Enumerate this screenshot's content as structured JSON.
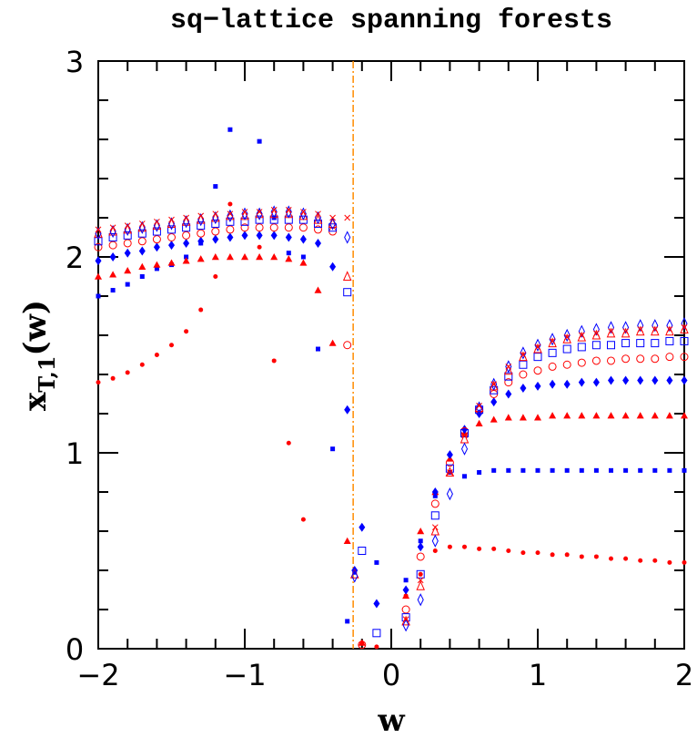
{
  "chart_data": {
    "type": "scatter",
    "title": "sq−lattice spanning forests",
    "xlabel": "w",
    "ylabel": {
      "base": "x",
      "sub": "T,1",
      "tail": "(w)"
    },
    "xlim": [
      -2,
      2
    ],
    "ylim": [
      0,
      3
    ],
    "xticks": [
      {
        "value": -2,
        "label": "−2"
      },
      {
        "value": -1,
        "label": "−1"
      },
      0,
      1,
      2
    ],
    "yticks": [
      0,
      1,
      2,
      3
    ],
    "xminorticks": [
      -1.8,
      -1.6,
      -1.4,
      -1.2,
      -0.8,
      -0.6,
      -0.4,
      -0.2,
      0.2,
      0.4,
      0.6,
      0.8,
      1.2,
      1.4,
      1.6,
      1.8
    ],
    "yminorticks": [
      0.2,
      0.4,
      0.6,
      0.8,
      1.2,
      1.4,
      1.6,
      1.8,
      2.2,
      2.4,
      2.6,
      2.8
    ],
    "vline": {
      "value": -0.26,
      "color": "#ff8c00"
    },
    "x": [
      -2,
      -1.9,
      -1.8,
      -1.7,
      -1.6,
      -1.5,
      -1.4,
      -1.3,
      -1.2,
      -1.1,
      -1.0,
      -0.9,
      -0.8,
      -0.7,
      -0.6,
      -0.5,
      -0.4,
      -0.3,
      -0.25,
      -0.2,
      -0.1,
      0,
      0.1,
      0.2,
      0.3,
      0.4,
      0.5,
      0.6,
      0.7,
      0.8,
      0.9,
      1.0,
      1.1,
      1.2,
      1.3,
      1.4,
      1.5,
      1.6,
      1.7,
      1.8,
      1.9,
      2.0
    ],
    "series": [
      {
        "color": "#ff0000",
        "marker": "dot",
        "values": [
          1.36,
          1.38,
          1.41,
          1.45,
          1.5,
          1.55,
          1.62,
          1.73,
          1.9,
          2.27,
          null,
          2.05,
          1.47,
          1.05,
          0.66,
          null,
          null,
          null,
          null,
          0.03,
          0.01,
          null,
          0.27,
          0.38,
          0.5,
          0.52,
          0.52,
          0.51,
          0.51,
          0.5,
          0.49,
          0.49,
          0.48,
          0.48,
          0.47,
          0.47,
          0.46,
          0.46,
          0.45,
          0.45,
          0.44,
          0.44
        ]
      },
      {
        "color": "#0000ff",
        "marker": "small-square",
        "values": [
          1.8,
          1.83,
          1.86,
          1.9,
          1.94,
          1.96,
          2.0,
          2.07,
          2.36,
          2.65,
          null,
          2.59,
          2.2,
          2.02,
          2.0,
          1.53,
          1.02,
          0.14,
          0.39,
          null,
          0.44,
          null,
          0.35,
          0.55,
          0.78,
          0.9,
          0.88,
          0.9,
          0.91,
          0.91,
          0.91,
          0.91,
          0.91,
          0.91,
          0.91,
          0.91,
          0.91,
          0.91,
          0.91,
          0.91,
          0.91,
          0.91
        ]
      },
      {
        "color": "#ff0000",
        "marker": "triangle",
        "values": [
          1.9,
          1.91,
          1.93,
          1.95,
          1.96,
          1.97,
          1.98,
          1.99,
          2.0,
          2.0,
          2.0,
          2.0,
          2.0,
          1.99,
          1.97,
          1.83,
          1.56,
          0.55,
          null,
          0.03,
          null,
          null,
          0.27,
          0.6,
          0.8,
          0.97,
          1.1,
          1.15,
          1.17,
          1.18,
          1.18,
          1.18,
          1.19,
          1.19,
          1.19,
          1.19,
          1.19,
          1.19,
          1.19,
          1.19,
          1.19,
          1.19
        ]
      },
      {
        "color": "#0000ff",
        "marker": "diamond",
        "values": [
          1.98,
          2.0,
          2.02,
          2.03,
          2.05,
          2.06,
          2.07,
          2.08,
          2.09,
          2.1,
          2.11,
          2.11,
          2.11,
          2.1,
          2.09,
          2.07,
          1.95,
          1.22,
          0.4,
          0.62,
          0.23,
          null,
          0.3,
          0.52,
          0.8,
          0.99,
          1.12,
          1.2,
          1.26,
          1.3,
          1.33,
          1.34,
          1.35,
          1.35,
          1.36,
          1.36,
          1.37,
          1.37,
          1.37,
          1.37,
          1.37,
          1.37
        ]
      },
      {
        "color": "#ff0000",
        "marker": "open-circle",
        "values": [
          2.05,
          2.06,
          2.07,
          2.08,
          2.09,
          2.1,
          2.11,
          2.12,
          2.13,
          2.14,
          2.15,
          2.15,
          2.15,
          2.15,
          2.15,
          2.14,
          2.13,
          1.55,
          null,
          0.02,
          null,
          null,
          0.2,
          0.47,
          0.74,
          0.95,
          1.11,
          1.22,
          1.3,
          1.36,
          1.4,
          1.42,
          1.44,
          1.45,
          1.46,
          1.47,
          1.47,
          1.48,
          1.48,
          1.48,
          1.49,
          1.49
        ]
      },
      {
        "color": "#0000ff",
        "marker": "open-square",
        "values": [
          2.08,
          2.1,
          2.11,
          2.12,
          2.13,
          2.14,
          2.15,
          2.16,
          2.17,
          2.18,
          2.18,
          2.19,
          2.19,
          2.19,
          2.19,
          2.17,
          2.15,
          1.82,
          null,
          0.5,
          0.08,
          null,
          0.16,
          0.38,
          0.68,
          0.92,
          1.1,
          1.22,
          1.32,
          1.39,
          1.45,
          1.49,
          1.51,
          1.53,
          1.54,
          1.55,
          1.55,
          1.56,
          1.56,
          1.56,
          1.57,
          1.57
        ]
      },
      {
        "color": "#ff0000",
        "marker": "open-triangle",
        "values": [
          2.12,
          2.13,
          2.14,
          2.15,
          2.16,
          2.17,
          2.18,
          2.19,
          2.2,
          2.21,
          2.21,
          2.22,
          2.22,
          2.22,
          2.21,
          2.19,
          2.17,
          1.9,
          0.38,
          null,
          null,
          null,
          0.14,
          0.32,
          0.6,
          0.9,
          1.07,
          1.23,
          1.34,
          1.42,
          1.49,
          1.53,
          1.56,
          1.58,
          1.59,
          1.6,
          1.61,
          1.61,
          1.62,
          1.62,
          1.62,
          1.63
        ]
      },
      {
        "color": "#0000ff",
        "marker": "open-diamond",
        "values": [
          2.12,
          2.13,
          2.14,
          2.15,
          2.16,
          2.17,
          2.18,
          2.19,
          2.2,
          2.21,
          2.22,
          2.22,
          2.23,
          2.23,
          2.22,
          2.2,
          2.17,
          2.1,
          0.37,
          null,
          null,
          null,
          0.12,
          0.25,
          0.55,
          0.79,
          1.02,
          1.23,
          1.35,
          1.44,
          1.51,
          1.55,
          1.58,
          1.6,
          1.62,
          1.63,
          1.64,
          1.64,
          1.65,
          1.65,
          1.65,
          1.66
        ]
      },
      {
        "color": "#ff0000",
        "marker": "cross",
        "values": [
          2.14,
          2.15,
          2.16,
          2.17,
          2.18,
          2.19,
          2.2,
          2.21,
          2.22,
          2.22,
          2.23,
          2.23,
          2.24,
          2.24,
          2.23,
          2.22,
          2.2,
          2.2,
          null,
          null,
          null,
          null,
          0.15,
          0.35,
          0.62,
          0.9,
          1.09,
          1.24,
          1.35,
          1.44,
          1.5,
          1.54,
          1.57,
          1.59,
          1.6,
          1.61,
          1.62,
          1.62,
          1.63,
          1.63,
          1.63,
          1.64
        ]
      }
    ]
  }
}
